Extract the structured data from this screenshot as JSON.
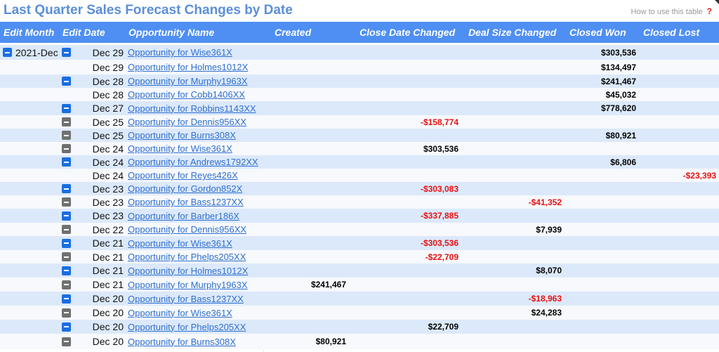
{
  "title": "Last Quarter Sales Forecast Changes by Date",
  "help": {
    "label": "How to use this table",
    "icon": "?"
  },
  "columns": [
    "Edit Month",
    "Edit Date",
    "Opportunity Name",
    "Created",
    "Close Date Changed",
    "Deal Size Changed",
    "Closed Won",
    "Closed Lost"
  ],
  "month": "2021-Dec",
  "rows": [
    {
      "date": "Dec 29",
      "opp": "Opportunity for Wise361X",
      "toggle": "blue",
      "created": "",
      "close": "",
      "size": "",
      "won": "$303,536",
      "lost": ""
    },
    {
      "date": "Dec 29",
      "opp": "Opportunity for Holmes1012X",
      "toggle": "none",
      "created": "",
      "close": "",
      "size": "",
      "won": "$134,497",
      "lost": ""
    },
    {
      "date": "Dec 28",
      "opp": "Opportunity for Murphy1963X",
      "toggle": "blue",
      "created": "",
      "close": "",
      "size": "",
      "won": "$241,467",
      "lost": ""
    },
    {
      "date": "Dec 28",
      "opp": "Opportunity for Cobb1406XX",
      "toggle": "none",
      "created": "",
      "close": "",
      "size": "",
      "won": "$45,032",
      "lost": ""
    },
    {
      "date": "Dec 27",
      "opp": "Opportunity for Robbins1143XX",
      "toggle": "blue",
      "created": "",
      "close": "",
      "size": "",
      "won": "$778,620",
      "lost": ""
    },
    {
      "date": "Dec 25",
      "opp": "Opportunity for Dennis956XX",
      "toggle": "gray",
      "created": "",
      "close": "-$158,774",
      "size": "",
      "won": "",
      "lost": ""
    },
    {
      "date": "Dec 25",
      "opp": "Opportunity for Burns308X",
      "toggle": "gray",
      "created": "",
      "close": "",
      "size": "",
      "won": "$80,921",
      "lost": ""
    },
    {
      "date": "Dec 24",
      "opp": "Opportunity for Wise361X",
      "toggle": "gray",
      "created": "",
      "close": "$303,536",
      "size": "",
      "won": "",
      "lost": ""
    },
    {
      "date": "Dec 24",
      "opp": "Opportunity for Andrews1792XX",
      "toggle": "blue",
      "created": "",
      "close": "",
      "size": "",
      "won": "$6,806",
      "lost": ""
    },
    {
      "date": "Dec 24",
      "opp": "Opportunity for Reyes426X",
      "toggle": "none",
      "created": "",
      "close": "",
      "size": "",
      "won": "",
      "lost": "-$23,393"
    },
    {
      "date": "Dec 23",
      "opp": "Opportunity for Gordon852X",
      "toggle": "blue",
      "created": "",
      "close": "-$303,083",
      "size": "",
      "won": "",
      "lost": ""
    },
    {
      "date": "Dec 23",
      "opp": "Opportunity for Bass1237XX",
      "toggle": "gray",
      "created": "",
      "close": "",
      "size": "-$41,352",
      "won": "",
      "lost": ""
    },
    {
      "date": "Dec 23",
      "opp": "Opportunity for Barber186X",
      "toggle": "blue",
      "created": "",
      "close": "-$337,885",
      "size": "",
      "won": "",
      "lost": ""
    },
    {
      "date": "Dec 22",
      "opp": "Opportunity for Dennis956XX",
      "toggle": "gray",
      "created": "",
      "close": "",
      "size": "$7,939",
      "won": "",
      "lost": ""
    },
    {
      "date": "Dec 21",
      "opp": "Opportunity for Wise361X",
      "toggle": "blue",
      "created": "",
      "close": "-$303,536",
      "size": "",
      "won": "",
      "lost": ""
    },
    {
      "date": "Dec 21",
      "opp": "Opportunity for Phelps205XX",
      "toggle": "gray",
      "created": "",
      "close": "-$22,709",
      "size": "",
      "won": "",
      "lost": ""
    },
    {
      "date": "Dec 21",
      "opp": "Opportunity for Holmes1012X",
      "toggle": "blue",
      "created": "",
      "close": "",
      "size": "$8,070",
      "won": "",
      "lost": ""
    },
    {
      "date": "Dec 21",
      "opp": "Opportunity for Murphy1963X",
      "toggle": "gray",
      "created": "$241,467",
      "close": "",
      "size": "",
      "won": "",
      "lost": ""
    },
    {
      "date": "Dec 20",
      "opp": "Opportunity for Bass1237XX",
      "toggle": "blue",
      "created": "",
      "close": "",
      "size": "-$18,963",
      "won": "",
      "lost": ""
    },
    {
      "date": "Dec 20",
      "opp": "Opportunity for Wise361X",
      "toggle": "gray",
      "created": "",
      "close": "",
      "size": "$24,283",
      "won": "",
      "lost": ""
    },
    {
      "date": "Dec 20",
      "opp": "Opportunity for Phelps205XX",
      "toggle": "blue",
      "created": "",
      "close": "$22,709",
      "size": "",
      "won": "",
      "lost": ""
    },
    {
      "date": "Dec 20",
      "opp": "Opportunity for Burns308X",
      "toggle": "gray",
      "created": "$80,921",
      "close": "",
      "size": "",
      "won": "",
      "lost": ""
    }
  ]
}
